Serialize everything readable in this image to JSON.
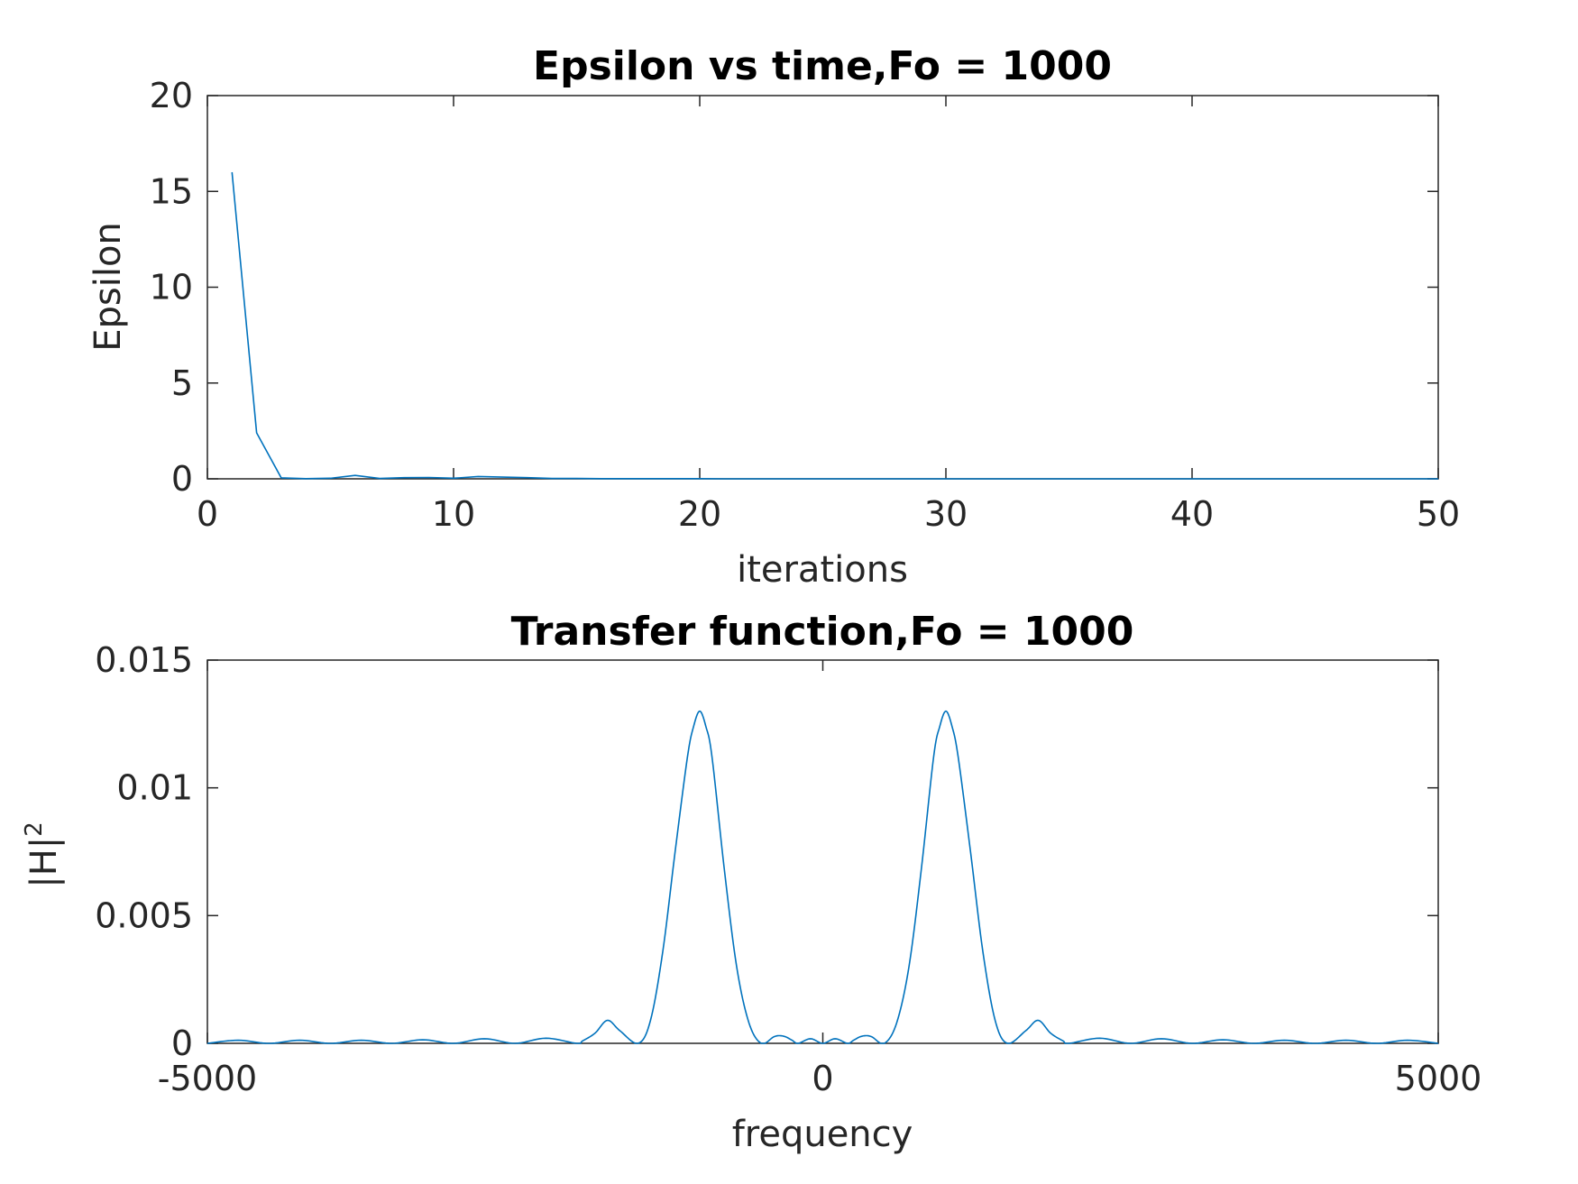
{
  "chart_data": [
    {
      "type": "line",
      "title": "Epsilon vs time,Fo = 1000",
      "xlabel": "iterations",
      "ylabel": "Epsilon",
      "xlim": [
        0,
        50
      ],
      "ylim": [
        0,
        20
      ],
      "xticks": [
        "0",
        "10",
        "20",
        "30",
        "40",
        "50"
      ],
      "yticks": [
        "0",
        "5",
        "10",
        "15",
        "20"
      ],
      "grid": false,
      "color": "#0072BD",
      "series": [
        {
          "x": [
            1,
            2,
            3,
            4,
            5,
            6,
            7,
            8,
            9,
            10,
            11,
            12,
            13,
            14,
            15,
            16,
            17,
            18,
            19,
            20,
            21,
            22,
            23,
            24,
            25,
            26,
            27,
            28,
            29,
            30,
            31,
            32,
            33,
            34,
            35,
            36,
            37,
            38,
            39,
            40,
            41,
            42,
            43,
            44,
            45,
            46,
            47,
            48,
            49,
            50
          ],
          "values": [
            16.0,
            2.4,
            0.05,
            0.01,
            0.03,
            0.18,
            0.02,
            0.06,
            0.07,
            0.03,
            0.12,
            0.09,
            0.06,
            0.02,
            0.02,
            0.01,
            0.01,
            0.01,
            0.01,
            0.01,
            0.0,
            0.0,
            0.0,
            0.0,
            0.0,
            0.0,
            0.0,
            0.0,
            0.0,
            0.0,
            0.0,
            0.0,
            0.0,
            0.0,
            0.0,
            0.0,
            0.0,
            0.0,
            0.0,
            0.0,
            0.0,
            0.0,
            0.0,
            0.0,
            0.0,
            0.0,
            0.0,
            0.0,
            0.0,
            0.0
          ]
        }
      ]
    },
    {
      "type": "line",
      "title": "Transfer function,Fo = 1000",
      "xlabel": "frequency",
      "ylabel": "|H|",
      "ylabel_superscript": "2",
      "xlim": [
        -5000,
        5000
      ],
      "ylim": [
        0,
        0.015
      ],
      "xticks": [
        "-5000",
        "0",
        "5000"
      ],
      "yticks": [
        "0",
        "0.005",
        "0.01",
        "0.015"
      ],
      "grid": false,
      "color": "#0072BD",
      "series": [
        {
          "x": [
            -5000,
            -4750,
            -4500,
            -4250,
            -4000,
            -3750,
            -3500,
            -3250,
            -3000,
            -2750,
            -2500,
            -2250,
            -2000,
            -1950,
            -1850,
            -1750,
            -1650,
            -1500,
            -1400,
            -1300,
            -1200,
            -1100,
            -1050,
            -1000,
            -950,
            -900,
            -800,
            -700,
            -600,
            -500,
            -400,
            -350,
            -300,
            -250,
            -200,
            -100,
            0,
            100,
            200,
            250,
            300,
            350,
            400,
            500,
            600,
            700,
            800,
            900,
            950,
            1000,
            1050,
            1100,
            1200,
            1300,
            1400,
            1500,
            1650,
            1750,
            1850,
            1950,
            2000,
            2250,
            2500,
            2750,
            3000,
            3250,
            3500,
            3750,
            4000,
            4250,
            4500,
            4750,
            5000
          ],
          "values": [
            0.0,
            0.00012,
            0.0,
            0.00012,
            0.0,
            0.00012,
            0.0,
            0.00014,
            0.0,
            0.00018,
            0.0,
            0.0002,
            0.0,
            0.0001,
            0.0004,
            0.0009,
            0.0005,
            0.0,
            0.0009,
            0.0036,
            0.0075,
            0.0112,
            0.0124,
            0.013,
            0.0124,
            0.0112,
            0.0068,
            0.003,
            0.0008,
            0.0,
            0.00025,
            0.0003,
            0.00025,
            0.00012,
            0.0,
            0.00018,
            0.0,
            0.00018,
            0.0,
            0.00012,
            0.00025,
            0.0003,
            0.00025,
            0.0,
            0.0008,
            0.003,
            0.0068,
            0.0112,
            0.0124,
            0.013,
            0.0124,
            0.0112,
            0.0075,
            0.0036,
            0.0009,
            0.0,
            0.0005,
            0.0009,
            0.0004,
            0.0001,
            0.0,
            0.0002,
            0.0,
            0.00018,
            0.0,
            0.00014,
            0.0,
            0.00012,
            0.0,
            0.00012,
            0.0,
            0.00012,
            0.0
          ]
        }
      ]
    }
  ]
}
